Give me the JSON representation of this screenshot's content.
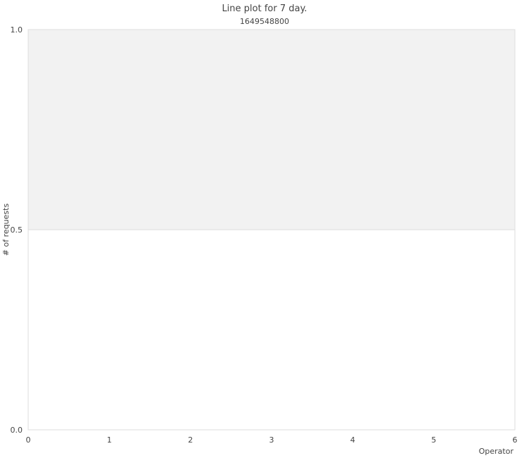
{
  "chart_data": {
    "type": "line",
    "title": "Line plot for 7 day.",
    "subtitle": "1649548800",
    "xlabel": "Operator",
    "ylabel": "# of requests",
    "xlim": [
      0,
      6
    ],
    "ylim": [
      0.0,
      1.0
    ],
    "x_ticks": [
      "0",
      "1",
      "2",
      "3",
      "4",
      "5",
      "6"
    ],
    "y_ticks": [
      "0.0",
      "0.5",
      "1.0"
    ],
    "bands": [
      {
        "y_from": 0.5,
        "y_to": 1.0,
        "color": "#f2f2f2"
      }
    ],
    "grid": true,
    "series": []
  }
}
